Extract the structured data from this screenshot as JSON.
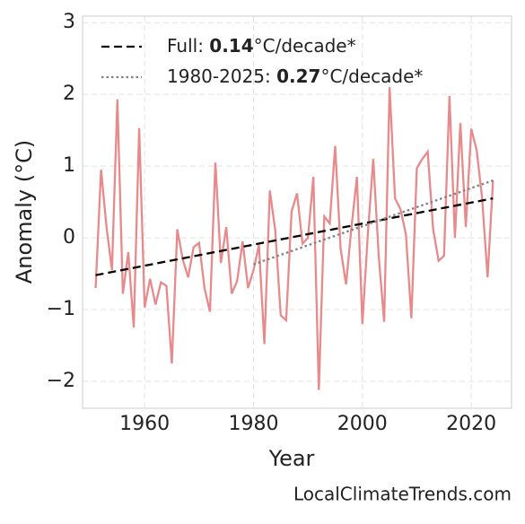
{
  "chart_data": {
    "type": "line",
    "xlabel": "Year",
    "ylabel": "Anomaly (°C)",
    "source": "LocalClimateTrends.com",
    "xlim": [
      1948.6,
      2027.4
    ],
    "xticks": [
      1960,
      1980,
      2000,
      2020
    ],
    "ylim": [
      -2.375,
      3.09
    ],
    "yticks": [
      {
        "value": -2,
        "label": "−2"
      },
      {
        "value": -1,
        "label": "−1"
      },
      0,
      1,
      2,
      3
    ],
    "grid": true,
    "legend": "upper left",
    "series": [
      {
        "name": "Anomaly",
        "color": "#e8898b",
        "style": "solid",
        "x": [
          1951,
          1952,
          1953,
          1954,
          1955,
          1956,
          1957,
          1958,
          1959,
          1960,
          1961,
          1962,
          1963,
          1964,
          1965,
          1966,
          1967,
          1968,
          1969,
          1970,
          1971,
          1972,
          1973,
          1974,
          1975,
          1976,
          1977,
          1978,
          1979,
          1980,
          1981,
          1982,
          1983,
          1984,
          1985,
          1986,
          1987,
          1988,
          1989,
          1990,
          1991,
          1992,
          1993,
          1994,
          1995,
          1996,
          1997,
          1998,
          1999,
          2000,
          2001,
          2002,
          2003,
          2004,
          2005,
          2006,
          2007,
          2008,
          2009,
          2010,
          2011,
          2012,
          2013,
          2014,
          2015,
          2016,
          2017,
          2018,
          2019,
          2020,
          2021,
          2022,
          2023,
          2024
        ],
        "values": [
          -0.7,
          0.95,
          0.15,
          -0.45,
          1.93,
          -0.78,
          -0.2,
          -1.25,
          1.53,
          -0.97,
          -0.57,
          -0.93,
          -0.62,
          -0.67,
          -1.75,
          0.12,
          -0.3,
          -0.55,
          -0.13,
          -0.07,
          -0.7,
          -1.03,
          1.05,
          -0.35,
          0.15,
          -0.78,
          -0.6,
          -0.05,
          -0.7,
          -0.45,
          -0.1,
          -1.48,
          0.66,
          0.1,
          -1.08,
          -1.15,
          0.37,
          0.62,
          -0.08,
          0.0,
          0.85,
          -2.12,
          0.3,
          0.2,
          1.28,
          -0.15,
          -0.65,
          0.15,
          0.85,
          -1.2,
          0.05,
          1.1,
          -0.25,
          -1.17,
          2.1,
          0.55,
          0.4,
          0.05,
          -1.12,
          0.97,
          1.1,
          1.2,
          0.12,
          -0.32,
          -0.25,
          1.98,
          0.0,
          1.6,
          0.15,
          1.52,
          1.22,
          0.55,
          -0.55,
          0.8
        ]
      },
      {
        "label": [
          "Full: ",
          "0.14",
          "°C/decade*"
        ],
        "color": "#000000",
        "style": "dashed",
        "x": [
          1951,
          2024
        ],
        "values": [
          -0.52,
          0.55
        ]
      },
      {
        "label": [
          "1980-2025: ",
          "0.27",
          "°C/decade*"
        ],
        "color": "#808080",
        "style": "dotted",
        "x": [
          1980,
          2024
        ],
        "values": [
          -0.37,
          0.8
        ]
      }
    ]
  }
}
